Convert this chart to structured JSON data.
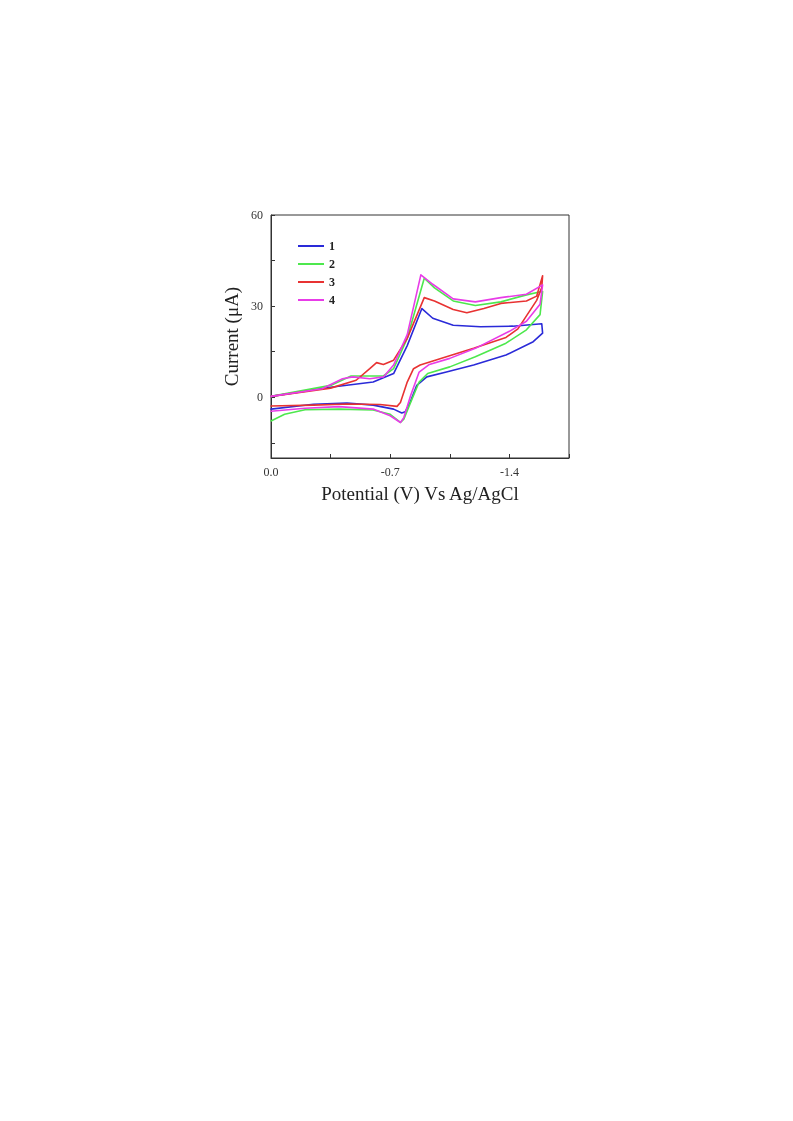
{
  "chart_data": {
    "type": "line",
    "xlabel": "Potential (V) Vs Ag/AgCl",
    "ylabel": "Current (μA)",
    "xlim": [
      0,
      -1.75
    ],
    "xticks": [
      {
        "value": 0,
        "label": "0.0"
      },
      {
        "value": -0.35,
        "label": null
      },
      -0.7,
      {
        "value": -1.05,
        "label": null
      },
      -1.4,
      {
        "value": -1.75,
        "label": null
      }
    ],
    "ylim": [
      -20,
      60
    ],
    "yticks": [
      {
        "value": -15,
        "label": null
      },
      0,
      {
        "value": 15,
        "label": null
      },
      30,
      {
        "value": 45,
        "label": null
      },
      60
    ],
    "grid": false,
    "legend": "top left",
    "marker": "none",
    "line_style": "solid",
    "series": [
      {
        "name": "1",
        "color": "#2a2ad8",
        "x": [
          0,
          -0.35,
          -0.6,
          -0.72,
          -0.8,
          -0.886,
          -0.95,
          -1.07,
          -1.23,
          -1.42,
          -1.59,
          -1.595,
          -1.54,
          -1.38,
          -1.19,
          -1.03,
          -0.915,
          -0.856,
          -0.817,
          -0.788,
          -0.768,
          -0.72,
          -0.6,
          -0.446,
          -0.25,
          0
        ],
        "values": [
          0.3,
          3.3,
          5,
          7.8,
          17,
          29.2,
          26,
          23.7,
          23.2,
          23.4,
          24.2,
          21.1,
          18.3,
          13.9,
          10.6,
          8.3,
          6.7,
          3.9,
          -1.7,
          -4.8,
          -5.2,
          -3.9,
          -2.6,
          -1.9,
          -2.3,
          -3.9
        ]
      },
      {
        "name": "2",
        "color": "#4de84d",
        "x": [
          0,
          -0.35,
          -0.47,
          -0.66,
          -0.72,
          -0.8,
          -0.9,
          -0.96,
          -1.07,
          -1.2,
          -1.35,
          -1.5,
          -1.59,
          -1.595,
          -1.58,
          -1.5,
          -1.38,
          -1.2,
          -1.05,
          -0.92,
          -0.87,
          -0.82,
          -0.78,
          -0.76,
          -0.7,
          -0.6,
          -0.4,
          -0.2,
          -0.08,
          0
        ],
        "values": [
          0.3,
          3.9,
          7,
          7,
          9.4,
          19.4,
          39.2,
          36,
          31.7,
          30.2,
          31.4,
          33.7,
          34.8,
          34.8,
          27.2,
          22.2,
          17.8,
          13.3,
          10,
          7.8,
          5,
          -1.7,
          -7.2,
          -8.3,
          -5.6,
          -4.2,
          -3.9,
          -4.1,
          -5.6,
          -7.8
        ]
      },
      {
        "name": "3",
        "color": "#e83232",
        "x": [
          0,
          -0.35,
          -0.5,
          -0.58,
          -0.62,
          -0.66,
          -0.72,
          -0.8,
          -0.9,
          -0.96,
          -1.07,
          -1.15,
          -1.25,
          -1.35,
          -1.5,
          -1.56,
          -1.595,
          -1.59,
          -1.56,
          -1.45,
          -1.38,
          -1.19,
          -1.03,
          -0.876,
          -0.837,
          -0.8,
          -0.76,
          -0.74,
          -0.64,
          -0.45,
          -0.25,
          0
        ],
        "values": [
          0.3,
          3,
          5.6,
          9.4,
          11.4,
          10.8,
          12.2,
          19.4,
          32.8,
          31.7,
          28.9,
          27.8,
          29.2,
          30.9,
          31.7,
          33.3,
          40,
          36.1,
          31.9,
          22.5,
          19.7,
          16.1,
          13.3,
          10.6,
          9.4,
          5,
          -1.7,
          -3,
          -2.4,
          -2.2,
          -2.6,
          -2.9
        ]
      },
      {
        "name": "4",
        "color": "#e83ce8",
        "x": [
          0,
          -0.3,
          -0.42,
          -0.48,
          -0.58,
          -0.66,
          -0.72,
          -0.8,
          -0.88,
          -0.95,
          -1.07,
          -1.2,
          -1.35,
          -1.5,
          -1.595,
          -1.58,
          -1.5,
          -1.4,
          -1.2,
          -1.05,
          -0.93,
          -0.87,
          -0.82,
          -0.78,
          -0.76,
          -0.7,
          -0.6,
          -0.4,
          -0.2,
          0
        ],
        "values": [
          0.3,
          2.8,
          6.1,
          6.7,
          6.1,
          6.7,
          10.6,
          20.6,
          40.3,
          37.2,
          32.4,
          31.4,
          32.8,
          33.9,
          37,
          30.6,
          25,
          21.7,
          16.1,
          12.8,
          10.8,
          8.3,
          0.6,
          -6.7,
          -8.3,
          -6.1,
          -3.9,
          -3.1,
          -3.6,
          -4.6
        ]
      }
    ]
  }
}
